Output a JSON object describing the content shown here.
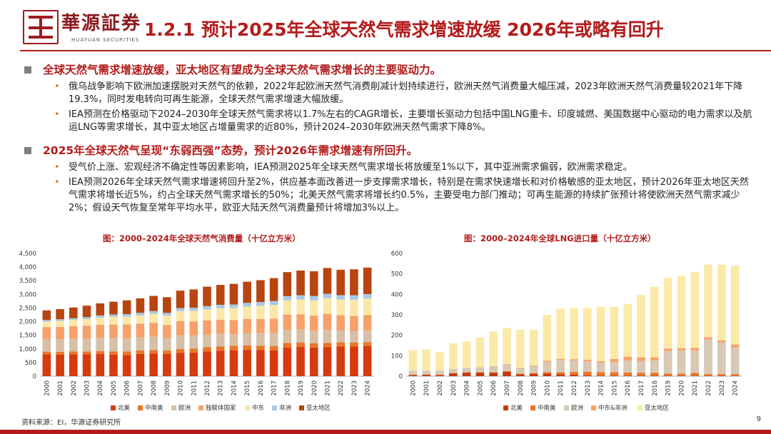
{
  "header": {
    "logo_cn": "華源証券",
    "logo_en": "HUAYUAN SECURITIES",
    "title": "1.2.1 预计2025年全球天然气需求增速放缓 2026年或略有回升"
  },
  "sections": [
    {
      "heading": "全球天然气需求增速放缓，亚太地区有望成为全球天然气需求增长的主要驱动力。",
      "points": [
        "俄乌战争影响下欧洲加速摆脱对天然气的依赖，2022年起欧洲天然气消费削减计划持续进行，欧洲天然气消费量大幅压减，2023年欧洲天然气消费量较2021年下降19.3%，同时发电转向可再生能源，全球天然气需求增速大幅放缓。",
        "IEA预测在价格驱动下2024–2030年全球天然气需求将以1.7%左右的CAGR增长，主要增长驱动力包括中国LNG重卡、印度城燃、美国数据中心驱动的电力需求以及航运LNG等需求增长，其中亚太地区占增量需求的近80%，预计2024–2030年欧洲天然气需求下降8%。"
      ]
    },
    {
      "heading": "2025年全球天然气呈现“东弱西强”态势，预计2026年需求增速有所回升。",
      "points": [
        "受气价上涨、宏观经济不确定性等因素影响，IEA预测2025年全球天然气需求增长将放缓至1%以下，其中亚洲需求偏弱，欧洲需求稳定。",
        "IEA预测2026年全球天然气需求增速将回升至2%，供应基本面改善进一步支撑需求增长，特别是在需求快速增长和对价格敏感的亚太地区，预计2026年亚太地区天然气需求将增长近5%，约占全球天然气需求增长的50%；北美天然气需求将增长约0.5%，主要受电力部门推动；可再生能源的持续扩张预计将使欧洲天然气需求减少2%；假设天气恢复至常年平均水平，欧亚大陆天然气消费量预计将增加3%以上。"
      ]
    }
  ],
  "chart_data": [
    {
      "type": "bar",
      "stacked": true,
      "title": "图：2000–2024年全球天然气消费量（十亿立方米）",
      "categories": [
        "2000",
        "2001",
        "2002",
        "2003",
        "2004",
        "2005",
        "2006",
        "2007",
        "2008",
        "2009",
        "2010",
        "2011",
        "2012",
        "2013",
        "2014",
        "2015",
        "2016",
        "2017",
        "2018",
        "2019",
        "2020",
        "2021",
        "2022",
        "2023",
        "2024"
      ],
      "ylim": [
        0,
        4500
      ],
      "yticks": [
        0,
        500,
        1000,
        1500,
        2000,
        2500,
        3000,
        3500,
        4000,
        4500
      ],
      "ytick_labels": [
        "0",
        "500",
        "1,000",
        "1,500",
        "2,000",
        "2,500",
        "3,000",
        "3,500",
        "4,000",
        "4,500"
      ],
      "series": [
        {
          "name": "北美",
          "color": "#d63a0f",
          "values": [
            800,
            790,
            805,
            800,
            810,
            790,
            780,
            815,
            825,
            810,
            850,
            865,
            905,
            935,
            950,
            965,
            955,
            945,
            1050,
            1075,
            1050,
            1060,
            1090,
            1085,
            1100
          ]
        },
        {
          "name": "中南美",
          "color": "#e8762a",
          "values": [
            100,
            103,
            105,
            108,
            113,
            120,
            125,
            128,
            133,
            130,
            145,
            150,
            155,
            160,
            165,
            168,
            165,
            163,
            165,
            163,
            155,
            160,
            155,
            150,
            150
          ]
        },
        {
          "name": "欧洲",
          "color": "#d6c0a8",
          "values": [
            450,
            460,
            455,
            465,
            480,
            490,
            480,
            480,
            490,
            460,
            500,
            470,
            460,
            455,
            420,
            440,
            460,
            470,
            480,
            470,
            465,
            480,
            425,
            410,
            420
          ]
        },
        {
          "name": "独联体国家",
          "color": "#f6a16a",
          "values": [
            450,
            455,
            465,
            480,
            490,
            495,
            510,
            505,
            510,
            480,
            520,
            525,
            525,
            520,
            525,
            520,
            520,
            530,
            565,
            560,
            550,
            585,
            565,
            570,
            575
          ]
        },
        {
          "name": "中东",
          "color": "#fbe8a8",
          "values": [
            200,
            215,
            230,
            240,
            255,
            280,
            290,
            300,
            330,
            340,
            375,
            390,
            405,
            420,
            440,
            460,
            480,
            500,
            525,
            545,
            560,
            570,
            575,
            590,
            600
          ]
        },
        {
          "name": "非洲",
          "color": "#a7c9e3",
          "values": [
            60,
            65,
            68,
            72,
            80,
            85,
            90,
            95,
            100,
            100,
            105,
            110,
            120,
            125,
            128,
            135,
            138,
            145,
            150,
            155,
            160,
            165,
            160,
            162,
            165
          ]
        },
        {
          "name": "亚太地区",
          "color": "#b8450f",
          "values": [
            350,
            370,
            390,
            420,
            440,
            470,
            505,
            530,
            555,
            575,
            640,
            670,
            710,
            730,
            755,
            775,
            800,
            840,
            880,
            905,
            905,
            945,
            930,
            950,
            970
          ]
        }
      ]
    },
    {
      "type": "bar",
      "stacked": true,
      "title": "图：2000–2024年全球LNG进口量（十亿立方米）",
      "categories": [
        "2000",
        "2001",
        "2002",
        "2003",
        "2004",
        "2005",
        "2006",
        "2007",
        "2008",
        "2009",
        "2010",
        "2011",
        "2012",
        "2013",
        "2014",
        "2015",
        "2016",
        "2017",
        "2018",
        "2019",
        "2020",
        "2021",
        "2022",
        "2023",
        "2024"
      ],
      "ylim": [
        0,
        600
      ],
      "yticks": [
        0,
        100,
        200,
        300,
        400,
        500,
        600
      ],
      "ytick_labels": [
        "0",
        "100",
        "200",
        "300",
        "400",
        "500",
        "600"
      ],
      "series": [
        {
          "name": "北美",
          "color": "#c23b0e",
          "values": [
            6,
            7,
            6,
            14,
            18,
            18,
            17,
            22,
            10,
            12,
            12,
            10,
            7,
            4,
            3,
            3,
            3,
            3,
            3,
            2,
            2,
            2,
            2,
            2,
            2
          ]
        },
        {
          "name": "中南美",
          "color": "#e8762a",
          "values": [
            1,
            1,
            1,
            1,
            1,
            1,
            2,
            3,
            2,
            3,
            8,
            9,
            14,
            18,
            17,
            16,
            15,
            14,
            14,
            11,
            10,
            14,
            8,
            8,
            8
          ]
        },
        {
          "name": "欧洲",
          "color": "#d8c8b4",
          "values": [
            20,
            19,
            20,
            21,
            22,
            25,
            30,
            35,
            30,
            35,
            50,
            60,
            55,
            50,
            45,
            51,
            59,
            57,
            60,
            110,
            115,
            110,
            170,
            155,
            130
          ]
        },
        {
          "name": "中东&非洲",
          "color": "#f6a16a",
          "values": [
            0,
            0,
            0,
            0,
            0,
            0,
            0,
            0,
            0,
            3,
            5,
            6,
            7,
            8,
            8,
            14,
            18,
            18,
            15,
            12,
            10,
            12,
            10,
            10,
            15
          ]
        },
        {
          "name": "亚太地区",
          "color": "#fbe9a7",
          "values": [
            100,
            105,
            90,
            125,
            130,
            145,
            170,
            175,
            185,
            175,
            225,
            245,
            250,
            254,
            265,
            255,
            258,
            305,
            345,
            345,
            353,
            370,
            355,
            370,
            385
          ]
        }
      ]
    }
  ],
  "footer": {
    "source": "资料来源：EI，华源证券研究所",
    "page": "9"
  }
}
